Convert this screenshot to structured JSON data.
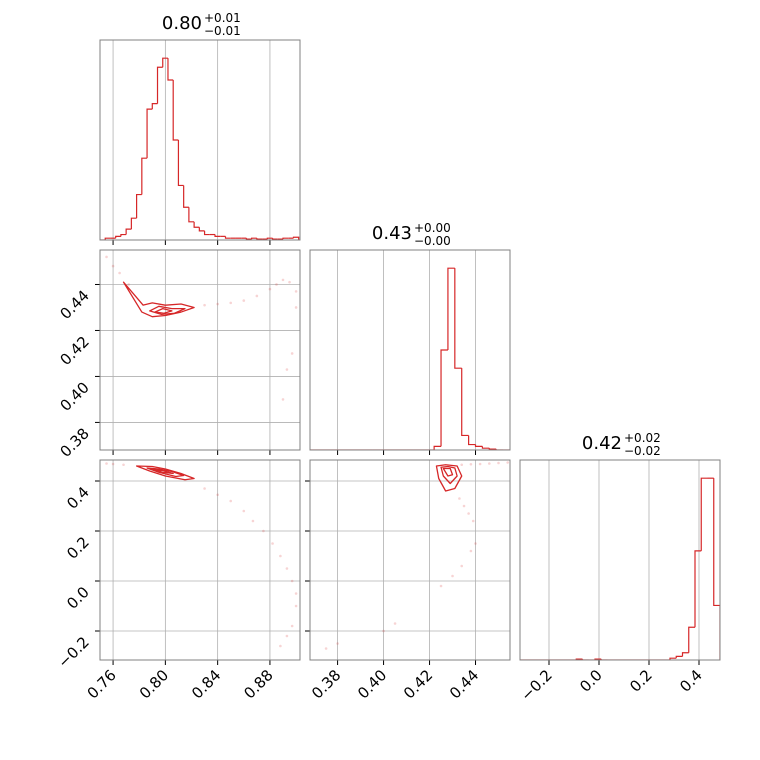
{
  "chart_data": [
    {
      "type": "histogram",
      "color": "#d62728",
      "title": "0.80",
      "title_sup": "+0.01",
      "title_sub": "−0.01",
      "bins": [
        0.75,
        0.754,
        0.758,
        0.762,
        0.766,
        0.77,
        0.774,
        0.778,
        0.782,
        0.786,
        0.79,
        0.794,
        0.798,
        0.802,
        0.806,
        0.81,
        0.814,
        0.818,
        0.822,
        0.826,
        0.83,
        0.834,
        0.838,
        0.842,
        0.846,
        0.85,
        0.854,
        0.858,
        0.862,
        0.866,
        0.87,
        0.874,
        0.878,
        0.882,
        0.886,
        0.89,
        0.894,
        0.898,
        0.902
      ],
      "values": [
        0,
        1,
        1,
        2,
        3,
        6,
        12,
        25,
        45,
        72,
        75,
        95,
        100,
        88,
        55,
        30,
        18,
        10,
        7,
        5,
        3,
        3,
        2,
        2,
        1,
        1,
        1,
        1,
        0.5,
        1,
        0.5,
        0.5,
        1,
        0.5,
        0.5,
        1,
        1,
        1.5
      ],
      "xlim": [
        0.75,
        0.903
      ],
      "ylim": [
        0,
        110
      ],
      "xticklabels": false,
      "xticks": [
        0.76,
        {
          "value": 0.8,
          "label": "0.80"
        },
        0.84,
        0.88
      ],
      "grid": true
    },
    {
      "type": "scatter",
      "color": "#d62728",
      "xlim": [
        0.75,
        0.903
      ],
      "ylim": [
        0.368,
        0.455
      ],
      "xticks": [
        0.76,
        {
          "value": 0.8,
          "label": "0.80"
        },
        0.84,
        0.88
      ],
      "xticklabels": false,
      "yticks": [
        0.38,
        {
          "value": 0.4,
          "label": "0.40"
        },
        0.42,
        0.44
      ],
      "yticklabels": true,
      "grid": true,
      "contours": [
        {
          "x": [
            0.768,
            0.777,
            0.783,
            0.79,
            0.8,
            0.812,
            0.822,
            0.812,
            0.8,
            0.79,
            0.782
          ],
          "y": [
            0.441,
            0.435,
            0.431,
            0.432,
            0.431,
            0.4315,
            0.43,
            0.428,
            0.4265,
            0.426,
            0.428
          ]
        },
        {
          "x": [
            0.788,
            0.795,
            0.805,
            0.815,
            0.807,
            0.797
          ],
          "y": [
            0.4285,
            0.4305,
            0.4295,
            0.4295,
            0.4275,
            0.427
          ]
        },
        {
          "x": [
            0.792,
            0.798,
            0.805,
            0.799
          ],
          "y": [
            0.428,
            0.4295,
            0.4285,
            0.4275
          ]
        }
      ],
      "points": {
        "x": [
          0.755,
          0.76,
          0.765,
          0.772,
          0.83,
          0.84,
          0.85,
          0.86,
          0.87,
          0.88,
          0.885,
          0.89,
          0.895,
          0.9,
          0.9,
          0.897,
          0.893,
          0.89
        ],
        "y": [
          0.452,
          0.448,
          0.445,
          0.44,
          0.431,
          0.4315,
          0.432,
          0.433,
          0.435,
          0.438,
          0.44,
          0.442,
          0.441,
          0.437,
          0.43,
          0.41,
          0.403,
          0.39
        ]
      }
    },
    {
      "type": "histogram",
      "color": "#d62728",
      "title": "0.43",
      "title_sup": "+0.00",
      "title_sub": "−0.00",
      "bins": [
        0.368,
        0.371,
        0.374,
        0.377,
        0.38,
        0.383,
        0.386,
        0.389,
        0.392,
        0.395,
        0.398,
        0.401,
        0.404,
        0.407,
        0.41,
        0.413,
        0.416,
        0.419,
        0.422,
        0.425,
        0.428,
        0.431,
        0.434,
        0.437,
        0.44,
        0.443,
        0.446,
        0.449,
        0.452,
        0.455
      ],
      "values": [
        0,
        0,
        0,
        0,
        0,
        0,
        0,
        0,
        0,
        0,
        0,
        0,
        0,
        0,
        0,
        0,
        0,
        0,
        2,
        55,
        100,
        45,
        8,
        3,
        2,
        1,
        0.5,
        0,
        0
      ],
      "xlim": [
        0.368,
        0.455
      ],
      "ylim": [
        0,
        110
      ],
      "xticklabels": false,
      "xticks": [
        0.38,
        {
          "value": 0.4,
          "label": "0.40"
        },
        0.42,
        0.44
      ],
      "grid": true
    },
    {
      "type": "scatter",
      "color": "#d62728",
      "xlim": [
        0.75,
        0.903
      ],
      "ylim": [
        -0.316,
        0.484
      ],
      "xticks": [
        0.76,
        {
          "value": 0.8,
          "label": "0.80"
        },
        0.84,
        0.88
      ],
      "xticklabels": true,
      "yticks": [
        {
          "value": -0.2,
          "label": "−0.2"
        },
        {
          "value": 0,
          "label": "0.0"
        },
        0.2,
        0.4
      ],
      "yticklabels": true,
      "grid": true,
      "contours": [
        {
          "x": [
            0.778,
            0.79,
            0.8,
            0.812,
            0.822,
            0.815,
            0.8,
            0.788
          ],
          "y": [
            0.46,
            0.458,
            0.448,
            0.43,
            0.41,
            0.405,
            0.42,
            0.44
          ]
        },
        {
          "x": [
            0.786,
            0.795,
            0.805,
            0.814,
            0.808,
            0.795
          ],
          "y": [
            0.452,
            0.448,
            0.438,
            0.422,
            0.418,
            0.435
          ]
        },
        {
          "x": [
            0.79,
            0.798,
            0.806,
            0.798
          ],
          "y": [
            0.447,
            0.442,
            0.43,
            0.435
          ]
        }
      ],
      "points": {
        "x": [
          0.755,
          0.76,
          0.768,
          0.83,
          0.84,
          0.85,
          0.86,
          0.867,
          0.875,
          0.882,
          0.888,
          0.893,
          0.897,
          0.9,
          0.9,
          0.897,
          0.893,
          0.888
        ],
        "y": [
          0.47,
          0.468,
          0.465,
          0.37,
          0.345,
          0.32,
          0.28,
          0.24,
          0.2,
          0.15,
          0.1,
          0.05,
          0.0,
          -0.05,
          -0.1,
          -0.18,
          -0.22,
          -0.26
        ]
      }
    },
    {
      "type": "scatter",
      "color": "#d62728",
      "xlim": [
        0.368,
        0.455
      ],
      "ylim": [
        -0.316,
        0.484
      ],
      "xticks": [
        0.38,
        {
          "value": 0.4,
          "label": "0.40"
        },
        0.42,
        0.44
      ],
      "xticklabels": true,
      "yticks": [
        {
          "value": -0.2,
          "label": "−0.2"
        },
        {
          "value": 0,
          "label": "0.0"
        },
        0.2,
        0.4
      ],
      "yticklabels": false,
      "grid": true,
      "contours": [
        {
          "x": [
            0.423,
            0.427,
            0.432,
            0.434,
            0.431,
            0.427,
            0.424
          ],
          "y": [
            0.46,
            0.465,
            0.46,
            0.42,
            0.37,
            0.36,
            0.41
          ]
        },
        {
          "x": [
            0.425,
            0.428,
            0.431,
            0.432,
            0.429,
            0.426
          ],
          "y": [
            0.455,
            0.458,
            0.452,
            0.42,
            0.39,
            0.42
          ]
        },
        {
          "x": [
            0.426,
            0.429,
            0.43,
            0.428
          ],
          "y": [
            0.45,
            0.45,
            0.425,
            0.42
          ]
        }
      ],
      "points": {
        "x": [
          0.434,
          0.438,
          0.442,
          0.446,
          0.45,
          0.454,
          0.433,
          0.435,
          0.437,
          0.439,
          0.44,
          0.438,
          0.434,
          0.43,
          0.425,
          0.405,
          0.4,
          0.38,
          0.375
        ],
        "y": [
          0.465,
          0.467,
          0.468,
          0.47,
          0.472,
          0.474,
          0.33,
          0.3,
          0.27,
          0.24,
          0.15,
          0.12,
          0.06,
          0.02,
          -0.02,
          -0.17,
          -0.2,
          -0.25,
          -0.27
        ]
      }
    },
    {
      "type": "histogram",
      "color": "#d62728",
      "title": "0.42",
      "title_sup": "+0.02",
      "title_sub": "−0.02",
      "bins": [
        -0.316,
        -0.291,
        -0.266,
        -0.241,
        -0.216,
        -0.191,
        -0.166,
        -0.141,
        -0.116,
        -0.091,
        -0.066,
        -0.041,
        -0.016,
        0.009,
        0.034,
        0.059,
        0.084,
        0.109,
        0.134,
        0.159,
        0.184,
        0.209,
        0.234,
        0.259,
        0.284,
        0.309,
        0.334,
        0.359,
        0.384,
        0.409,
        0.434,
        0.459,
        0.484
      ],
      "values": [
        0,
        0,
        0,
        0,
        0,
        0,
        0,
        0,
        0,
        0.5,
        0,
        0,
        0.5,
        0,
        0,
        0,
        0,
        0,
        0,
        0,
        0,
        0,
        0,
        0,
        1,
        2,
        4,
        18,
        60,
        100,
        100,
        30
      ],
      "xlim": [
        -0.316,
        0.484
      ],
      "ylim": [
        0,
        110
      ],
      "xticklabels": true,
      "xticks": [
        {
          "value": -0.2,
          "label": "−0.2"
        },
        {
          "value": 0,
          "label": "0.0"
        },
        0.2,
        0.4
      ],
      "grid": true
    }
  ]
}
